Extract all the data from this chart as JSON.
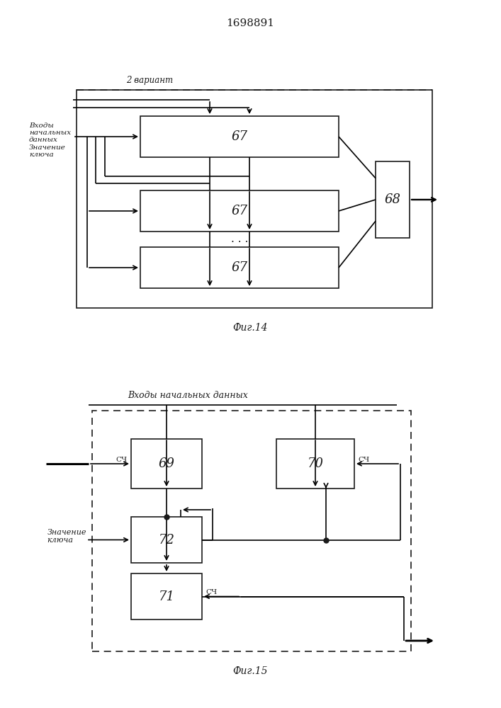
{
  "title": "1698891",
  "fig14_label": "Фиг.14",
  "fig15_label": "Фиг.15",
  "fig14_variant_label": "2 вариант",
  "fig14_input_label": "Входы\nначальных\nданных\nЗначение\nключа",
  "fig15_input_label": "Входы начальных данных",
  "fig15_znach_label": "Значение\nключа",
  "sch_label": "СЧ",
  "bg_color": "#ffffff",
  "line_color": "#1a1a1a"
}
